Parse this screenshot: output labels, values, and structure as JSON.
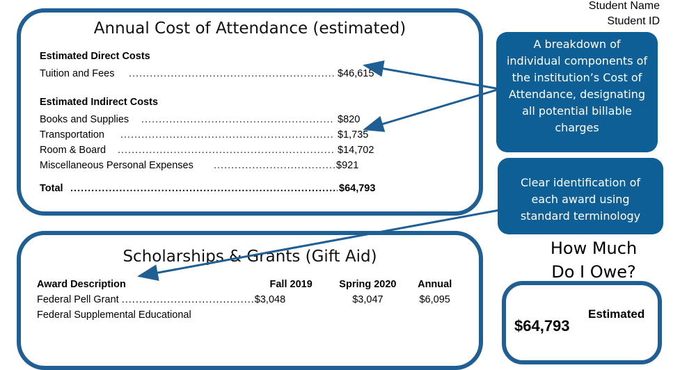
{
  "student": {
    "name_label": "Student Name",
    "id_label": "Student ID"
  },
  "cost_panel": {
    "title": "Annual Cost of Attendance (estimated)",
    "direct_heading": "Estimated Direct Costs",
    "direct_items": [
      {
        "label": "Tuition and Fees",
        "amount": "$46,615"
      }
    ],
    "indirect_heading": "Estimated Indirect Costs",
    "indirect_items": [
      {
        "label": "Books and Supplies",
        "amount": "$820"
      },
      {
        "label": "Transportation",
        "amount": "$1,735"
      },
      {
        "label": "Room & Board",
        "amount": "$14,702"
      },
      {
        "label": "Miscellaneous Personal Expenses",
        "amount": "$921"
      }
    ],
    "total_label": "Total",
    "total_amount": "$64,793"
  },
  "callouts": {
    "breakdown": "A breakdown of individual components of the institution’s Cost of Attendance, designating all potential billable charges",
    "identification": "Clear identification of each award using standard terminology"
  },
  "grants_panel": {
    "title": "Scholarships & Grants (Gift Aid)",
    "columns": [
      "Award Description",
      "Fall 2019",
      "Spring 2020",
      "Annual"
    ],
    "rows": [
      {
        "desc": "Federal Pell Grant",
        "fall": "$3,048",
        "spring": "$3,047",
        "annual": "$6,095"
      },
      {
        "desc": "Federal Supplemental Educational",
        "fall": "",
        "spring": "",
        "annual": ""
      }
    ]
  },
  "owe_panel": {
    "heading_line1": "How Much",
    "heading_line2": "Do I Owe?",
    "estimated_label": "Estimated",
    "amount_partial": "$64,793"
  },
  "colors": {
    "brand_blue": "#1f5f94",
    "callout_blue": "#0e5f96"
  }
}
